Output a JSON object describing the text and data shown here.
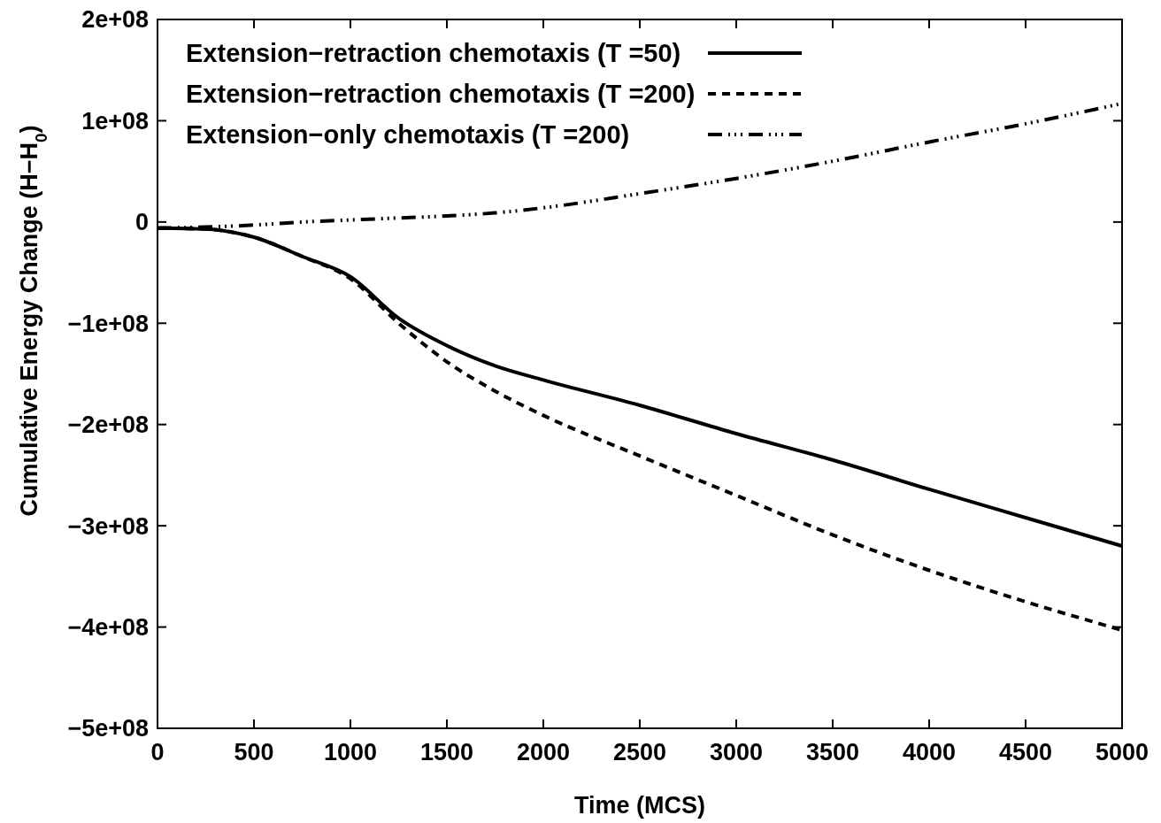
{
  "chart_data": {
    "type": "line",
    "xlabel": "Time (MCS)",
    "ylabel": "Cumulative Energy Change  (H−H$_{0}$)",
    "x": [
      0,
      250,
      500,
      750,
      1000,
      1250,
      1500,
      1750,
      2000,
      2500,
      3000,
      3500,
      4000,
      4500,
      5000
    ],
    "series": [
      {
        "name": "Extension−retraction chemotaxis (T =50)",
        "color": "#000000",
        "line_style": "solid",
        "values": [
          -6000000,
          -7000000,
          -15000000,
          -34000000,
          -54000000,
          -95000000,
          -122000000,
          -142000000,
          -156000000,
          -181000000,
          -209000000,
          -235000000,
          -264000000,
          -292000000,
          -320000000
        ]
      },
      {
        "name": "Extension−retraction chemotaxis (T =200)",
        "color": "#000000",
        "line_style": "dashed",
        "values": [
          -6000000,
          -7000000,
          -15000000,
          -34000000,
          -56000000,
          -100000000,
          -138000000,
          -167000000,
          -191000000,
          -231000000,
          -270000000,
          -309000000,
          -344000000,
          -375000000,
          -403000000
        ]
      },
      {
        "name": "Extension−only chemotaxis (T =200)",
        "color": "#000000",
        "line_style": "dotted",
        "values": [
          -6000000,
          -5000000,
          -3000000,
          0,
          2000000,
          4000000,
          6000000,
          9000000,
          14000000,
          28000000,
          43000000,
          60000000,
          79000000,
          97000000,
          117000000
        ]
      }
    ],
    "xlim": [
      0,
      5000
    ],
    "xticks": [
      0,
      500,
      1000,
      1500,
      2000,
      2500,
      3000,
      3500,
      4000,
      4500,
      5000
    ],
    "ylim": [
      -500000000,
      200000000
    ],
    "yticks": [
      {
        "value": -500000000,
        "label": "−5e+08"
      },
      {
        "value": -400000000,
        "label": "−4e+08"
      },
      {
        "value": -300000000,
        "label": "−3e+08"
      },
      {
        "value": -200000000,
        "label": "−2e+08"
      },
      {
        "value": -100000000,
        "label": "−1e+08"
      },
      0,
      {
        "value": 100000000,
        "label": "1e+08"
      },
      {
        "value": 200000000,
        "label": "2e+08"
      }
    ],
    "grid": false,
    "legend": "top"
  }
}
